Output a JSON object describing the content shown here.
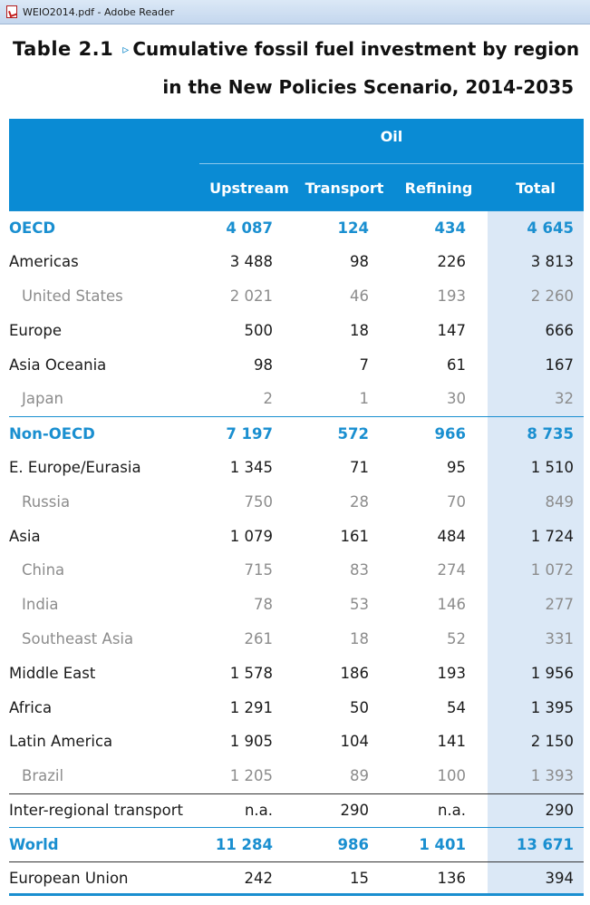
{
  "window": {
    "title": "WEIO2014.pdf - Adobe Reader"
  },
  "heading": {
    "table_number": "Table 2.1",
    "arrow": "▹",
    "title_line1": "Cumulative fossil fuel investment by region",
    "title_line2": "in the New Policies Scenario, 2014-2035"
  },
  "table": {
    "group_header": "Oil",
    "columns": [
      "Upstream",
      "Transport",
      "Refining",
      "Total"
    ],
    "rows": [
      {
        "label": "OECD",
        "kind": "region",
        "values": [
          "4 087",
          "124",
          "434",
          "4 645"
        ]
      },
      {
        "label": "Americas",
        "kind": "normal",
        "values": [
          "3 488",
          "98",
          "226",
          "3 813"
        ]
      },
      {
        "label": "United States",
        "kind": "country",
        "values": [
          "2 021",
          "46",
          "193",
          "2 260"
        ]
      },
      {
        "label": "Europe",
        "kind": "normal",
        "values": [
          "500",
          "18",
          "147",
          "666"
        ]
      },
      {
        "label": "Asia Oceania",
        "kind": "normal",
        "values": [
          "98",
          "7",
          "61",
          "167"
        ]
      },
      {
        "label": "Japan",
        "kind": "country",
        "values": [
          "2",
          "1",
          "30",
          "32"
        ]
      },
      {
        "label": "Non-OECD",
        "kind": "region",
        "values": [
          "7 197",
          "572",
          "966",
          "8 735"
        ]
      },
      {
        "label": "E. Europe/Eurasia",
        "kind": "normal",
        "values": [
          "1 345",
          "71",
          "95",
          "1 510"
        ]
      },
      {
        "label": "Russia",
        "kind": "country",
        "values": [
          "750",
          "28",
          "70",
          "849"
        ]
      },
      {
        "label": "Asia",
        "kind": "normal",
        "values": [
          "1 079",
          "161",
          "484",
          "1 724"
        ]
      },
      {
        "label": "China",
        "kind": "country",
        "values": [
          "715",
          "83",
          "274",
          "1 072"
        ]
      },
      {
        "label": "India",
        "kind": "country",
        "values": [
          "78",
          "53",
          "146",
          "277"
        ]
      },
      {
        "label": "Southeast Asia",
        "kind": "country",
        "values": [
          "261",
          "18",
          "52",
          "331"
        ]
      },
      {
        "label": "Middle East",
        "kind": "normal",
        "values": [
          "1 578",
          "186",
          "193",
          "1 956"
        ]
      },
      {
        "label": "Africa",
        "kind": "normal",
        "values": [
          "1 291",
          "50",
          "54",
          "1 395"
        ]
      },
      {
        "label": "Latin America",
        "kind": "normal",
        "values": [
          "1 905",
          "104",
          "141",
          "2 150"
        ]
      },
      {
        "label": "Brazil",
        "kind": "country",
        "values": [
          "1 205",
          "89",
          "100",
          "1 393"
        ]
      },
      {
        "label": "Inter-regional transport",
        "kind": "normal",
        "values": [
          "n.a.",
          "290",
          "n.a.",
          "290"
        ]
      },
      {
        "label": "World",
        "kind": "region",
        "values": [
          "11 284",
          "986",
          "1 401",
          "13 671"
        ]
      },
      {
        "label": "European Union",
        "kind": "normal",
        "values": [
          "242",
          "15",
          "136",
          "394"
        ]
      }
    ]
  },
  "colors": {
    "accent": "#0a8bd4",
    "total_column": "#dbe8f6",
    "country_text": "#8c8c8c"
  }
}
